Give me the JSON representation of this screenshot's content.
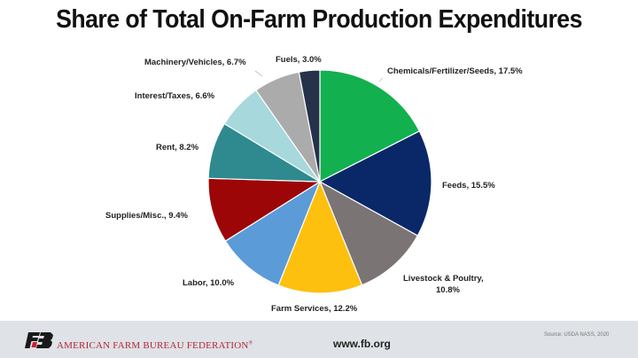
{
  "header": {
    "title": "Share of Total On-Farm Production Expenditures"
  },
  "chart_data": {
    "type": "pie",
    "title": "Share of Total On-Farm Production Expenditures",
    "start_angle": "12 o'clock, clockwise",
    "unit": "%",
    "slices": [
      {
        "label": "Chemicals/Fertilizer/Seeds",
        "value": 17.5,
        "color": "#12b04f",
        "text": "Chemicals/Fertilizer/Seeds,  17.5%"
      },
      {
        "label": "Feeds",
        "value": 15.5,
        "color": "#0a2868",
        "text": "Feeds, 15.5%"
      },
      {
        "label": "Livestock & Poultry",
        "value": 10.8,
        "color": "#7a7474",
        "text_line1": "Livestock & Poultry,",
        "text_line2": "10.8%"
      },
      {
        "label": "Farm Services",
        "value": 12.2,
        "color": "#fec00f",
        "text": "Farm Services, 12.2%"
      },
      {
        "label": "Labor",
        "value": 10.0,
        "color": "#5b9bd8",
        "text": "Labor, 10.0%"
      },
      {
        "label": "Supplies/Misc.",
        "value": 9.4,
        "color": "#9c0606",
        "text": "Supplies/Misc., 9.4%"
      },
      {
        "label": "Rent",
        "value": 8.2,
        "color": "#2e8a8e",
        "text": "Rent, 8.2%"
      },
      {
        "label": "Interest/Taxes",
        "value": 6.6,
        "color": "#a6d8dc",
        "text": "Interest/Taxes,  6.6%"
      },
      {
        "label": "Machinery/Vehicles",
        "value": 6.7,
        "color": "#ababab",
        "text": "Machinery/Vehicles,  6.7%"
      },
      {
        "label": "Fuels",
        "value": 3.0,
        "color": "#26324a",
        "text": "Fuels, 3.0%"
      }
    ],
    "legend": "none (data labels)"
  },
  "footer": {
    "organization": "AMERICAN FARM BUREAU FEDERATION",
    "registered_mark": "®",
    "website": "www.fb.org",
    "source": "Source: USDA NASS, 2020",
    "logo_text": "FB",
    "logo_accent_color": "#c8202f"
  }
}
